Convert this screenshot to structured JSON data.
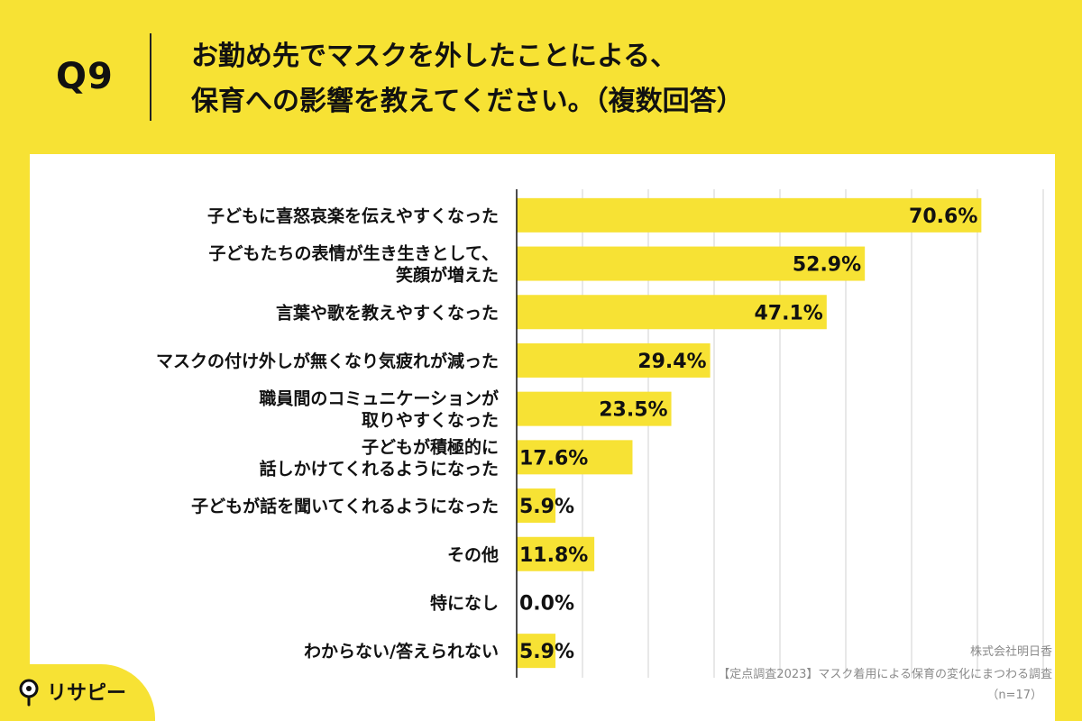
{
  "question": {
    "label": "Q9",
    "title_line1": "お勤め先でマスクを外したことによる、",
    "title_line2": "保育への影響を教えてください。（複数回答）"
  },
  "chart_data": {
    "type": "bar",
    "orientation": "horizontal",
    "categories": [
      [
        "子どもに喜怒哀楽を伝えやすくなった"
      ],
      [
        "子どもたちの表情が生き生きとして、",
        "笑顔が増えた"
      ],
      [
        "言葉や歌を教えやすくなった"
      ],
      [
        "マスクの付け外しが無くなり気疲れが減った"
      ],
      [
        "職員間のコミュニケーションが",
        "取りやすくなった"
      ],
      [
        "子どもが積極的に",
        "話しかけてくれるようになった"
      ],
      [
        "子どもが話を聞いてくれるようになった"
      ],
      [
        "その他"
      ],
      [
        "特になし"
      ],
      [
        "わからない/答えられない"
      ]
    ],
    "values": [
      70.6,
      52.9,
      47.1,
      29.4,
      23.5,
      17.6,
      5.9,
      11.8,
      0.0,
      5.9
    ],
    "value_labels": [
      "70.6%",
      "52.9%",
      "47.1%",
      "29.4%",
      "23.5%",
      "17.6%",
      "5.9%",
      "11.8%",
      "0.0%",
      "5.9%"
    ],
    "xlim": [
      0,
      80
    ],
    "grid_step": 10,
    "grid": true,
    "bar_color": "#F7E234"
  },
  "footer": {
    "company": "株式会社明日香",
    "source": "【定点調査2023】マスク着用による保育の変化にまつわる調査",
    "sample": "（n=17）"
  },
  "logo": {
    "text": "リサピー",
    "icon": "magnifier-icon"
  },
  "colors": {
    "background": "#F7E234",
    "card": "#FFFFFF",
    "bar": "#F7E234",
    "grid": "#D0D0D0",
    "text": "#111111"
  }
}
